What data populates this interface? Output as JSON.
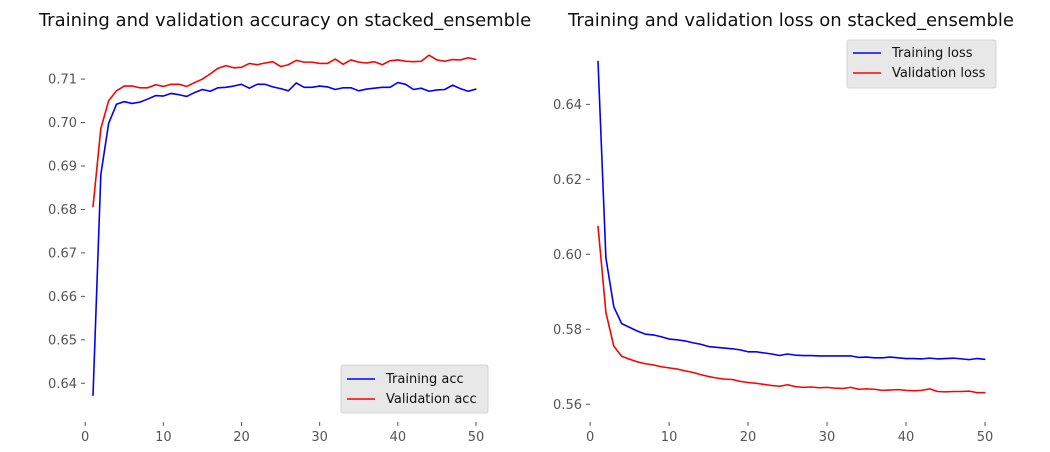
{
  "chart_data": [
    {
      "type": "line",
      "title": "Training and validation accuracy on stacked_ensemble",
      "xlabel": "",
      "ylabel": "",
      "xlim": [
        1,
        50
      ],
      "ylim": [
        0.635,
        0.716
      ],
      "xticks": [
        0,
        10,
        20,
        30,
        40,
        50
      ],
      "yticks": [
        0.64,
        0.65,
        0.66,
        0.67,
        0.68,
        0.69,
        0.7,
        0.71
      ],
      "ytick_labels": [
        "0.64",
        "0.65",
        "0.66",
        "0.67",
        "0.68",
        "0.69",
        "0.70",
        "0.71"
      ],
      "grid": false,
      "legend_position": "lower-right",
      "x": [
        1,
        2,
        3,
        4,
        5,
        6,
        7,
        8,
        9,
        10,
        11,
        12,
        13,
        14,
        15,
        16,
        17,
        18,
        19,
        20,
        21,
        22,
        23,
        24,
        25,
        26,
        27,
        28,
        29,
        30,
        31,
        32,
        33,
        34,
        35,
        36,
        37,
        38,
        39,
        40,
        41,
        42,
        43,
        44,
        45,
        46,
        47,
        48,
        49,
        50
      ],
      "series": [
        {
          "name": "Training acc",
          "color": "#0000ff",
          "values": [
            0.6372,
            0.688,
            0.6998,
            0.7042,
            0.7048,
            0.7044,
            0.7047,
            0.7054,
            0.7062,
            0.7061,
            0.7067,
            0.7064,
            0.706,
            0.7069,
            0.7076,
            0.7072,
            0.708,
            0.7081,
            0.7084,
            0.7088,
            0.7079,
            0.7088,
            0.7088,
            0.7082,
            0.7078,
            0.7073,
            0.7091,
            0.7081,
            0.7081,
            0.7084,
            0.7082,
            0.7076,
            0.708,
            0.708,
            0.7073,
            0.7077,
            0.7079,
            0.7081,
            0.7081,
            0.7092,
            0.7088,
            0.7076,
            0.7079,
            0.7072,
            0.7075,
            0.7076,
            0.7086,
            0.7078,
            0.7072,
            0.7077
          ]
        },
        {
          "name": "Validation acc",
          "color": "#ff0000",
          "values": [
            0.6806,
            0.6986,
            0.705,
            0.7073,
            0.7084,
            0.7084,
            0.708,
            0.708,
            0.7087,
            0.7083,
            0.7088,
            0.7088,
            0.7083,
            0.7092,
            0.71,
            0.7112,
            0.7125,
            0.7131,
            0.7126,
            0.7127,
            0.7136,
            0.7133,
            0.7137,
            0.714,
            0.7129,
            0.7133,
            0.7143,
            0.7139,
            0.7139,
            0.7136,
            0.7136,
            0.7146,
            0.7134,
            0.7144,
            0.7139,
            0.7137,
            0.714,
            0.7133,
            0.7142,
            0.7144,
            0.7141,
            0.714,
            0.7141,
            0.7155,
            0.7144,
            0.7141,
            0.7145,
            0.7144,
            0.7149,
            0.7145
          ]
        }
      ]
    },
    {
      "type": "line",
      "title": "Training and validation loss on stacked_ensemble",
      "xlabel": "",
      "ylabel": "",
      "xlim": [
        1,
        50
      ],
      "ylim": [
        0.5598,
        0.6537
      ],
      "xticks": [
        0,
        10,
        20,
        30,
        40,
        50
      ],
      "yticks": [
        0.56,
        0.58,
        0.6,
        0.62,
        0.64
      ],
      "ytick_labels": [
        "0.56",
        "0.58",
        "0.60",
        "0.62",
        "0.64"
      ],
      "grid": false,
      "legend_position": "top-right",
      "x": [
        1,
        2,
        3,
        4,
        5,
        6,
        7,
        8,
        9,
        10,
        11,
        12,
        13,
        14,
        15,
        16,
        17,
        18,
        19,
        20,
        21,
        22,
        23,
        24,
        25,
        26,
        27,
        28,
        29,
        30,
        31,
        32,
        33,
        34,
        35,
        36,
        37,
        38,
        39,
        40,
        41,
        42,
        43,
        44,
        45,
        46,
        47,
        48,
        49,
        50
      ],
      "series": [
        {
          "name": "Training loss",
          "color": "#0000ff",
          "values": [
            0.6515,
            0.599,
            0.586,
            0.5815,
            0.5805,
            0.5795,
            0.5787,
            0.5785,
            0.578,
            0.5774,
            0.5772,
            0.5769,
            0.5764,
            0.576,
            0.5754,
            0.5752,
            0.575,
            0.5748,
            0.5745,
            0.574,
            0.574,
            0.5737,
            0.5734,
            0.573,
            0.5734,
            0.5731,
            0.573,
            0.573,
            0.5729,
            0.5729,
            0.5729,
            0.5729,
            0.5729,
            0.5725,
            0.5726,
            0.5724,
            0.5724,
            0.5726,
            0.5724,
            0.5722,
            0.5722,
            0.5721,
            0.5723,
            0.5721,
            0.5722,
            0.5723,
            0.5721,
            0.5719,
            0.5722,
            0.572
          ]
        },
        {
          "name": "Validation loss",
          "color": "#ff0000",
          "values": [
            0.6075,
            0.5845,
            0.5755,
            0.5728,
            0.572,
            0.5713,
            0.5708,
            0.5705,
            0.57,
            0.5697,
            0.5694,
            0.5689,
            0.5685,
            0.5679,
            0.5674,
            0.567,
            0.5667,
            0.5666,
            0.5661,
            0.5658,
            0.5656,
            0.5653,
            0.565,
            0.5648,
            0.5652,
            0.5647,
            0.5645,
            0.5646,
            0.5644,
            0.5645,
            0.5643,
            0.5642,
            0.5645,
            0.564,
            0.5641,
            0.564,
            0.5637,
            0.5638,
            0.5639,
            0.5637,
            0.5636,
            0.5637,
            0.5641,
            0.5634,
            0.5633,
            0.5634,
            0.5634,
            0.5635,
            0.5631,
            0.5631
          ]
        }
      ]
    }
  ]
}
